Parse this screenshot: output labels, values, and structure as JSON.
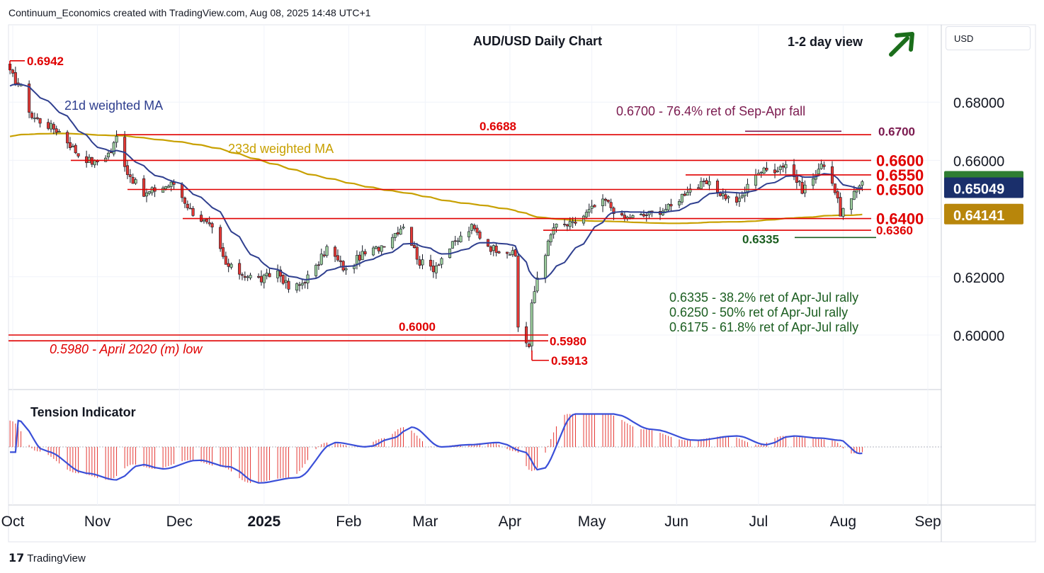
{
  "header": {
    "attribution": "Continuum_Economics created with TradingView.com, Aug 08, 2025 14:48 UTC+1"
  },
  "currency_button": "USD",
  "footer": {
    "brand": "TradingView"
  },
  "colors": {
    "candle_up": "#9ccc9c",
    "candle_down": "#e53935",
    "wick": "#131722",
    "ma21": "#2f3f8f",
    "ma233": "#c8a000",
    "level_red": "#e00000",
    "level_purple": "#7b1a4f",
    "level_green": "#1b5e20",
    "price_tag_green": "#2e7d32",
    "price_tag_navy": "#1a2f6b",
    "price_tag_gold": "#b8860b",
    "tension_line": "#3a4fd8",
    "tension_hist": "#e53935",
    "arrow_green": "#1b6e1b"
  },
  "chart_data": [
    {
      "type": "candlestick",
      "title": "AUD/USD Daily Chart",
      "view_label": "1-2 day view",
      "view_direction": "up",
      "x_tick_labels": [
        "Oct",
        "Nov",
        "Dec",
        "2025",
        "Feb",
        "Mar",
        "Apr",
        "May",
        "Jun",
        "Jul",
        "Aug",
        "Sep"
      ],
      "y_tick_labels": [
        "0.68000",
        "0.66000",
        "0.62000",
        "0.60000"
      ],
      "ylim": [
        0.588,
        0.6985
      ],
      "grid": true,
      "close_series_approx": [
        [
          "2024-09-30",
          0.69
        ],
        [
          "2024-10-04",
          0.685
        ],
        [
          "2024-10-08",
          0.675
        ],
        [
          "2024-10-14",
          0.672
        ],
        [
          "2024-10-18",
          0.67
        ],
        [
          "2024-10-25",
          0.662
        ],
        [
          "2024-10-31",
          0.659
        ],
        [
          "2024-11-06",
          0.663
        ],
        [
          "2024-11-08",
          0.668
        ],
        [
          "2024-11-12",
          0.656
        ],
        [
          "2024-11-18",
          0.648
        ],
        [
          "2024-11-22",
          0.65
        ],
        [
          "2024-11-29",
          0.652
        ],
        [
          "2024-12-05",
          0.643
        ],
        [
          "2024-12-10",
          0.639
        ],
        [
          "2024-12-13",
          0.636
        ],
        [
          "2024-12-18",
          0.624
        ],
        [
          "2024-12-24",
          0.621
        ],
        [
          "2024-12-31",
          0.619
        ],
        [
          "2025-01-06",
          0.622
        ],
        [
          "2025-01-10",
          0.616
        ],
        [
          "2025-01-14",
          0.617
        ],
        [
          "2025-01-20",
          0.623
        ],
        [
          "2025-01-24",
          0.63
        ],
        [
          "2025-01-31",
          0.622
        ],
        [
          "2025-02-05",
          0.627
        ],
        [
          "2025-02-12",
          0.63
        ],
        [
          "2025-02-19",
          0.636
        ],
        [
          "2025-02-21",
          0.638
        ],
        [
          "2025-02-27",
          0.625
        ],
        [
          "2025-03-04",
          0.623
        ],
        [
          "2025-03-10",
          0.63
        ],
        [
          "2025-03-18",
          0.637
        ],
        [
          "2025-03-25",
          0.63
        ],
        [
          "2025-03-31",
          0.629
        ],
        [
          "2025-04-03",
          0.627
        ],
        [
          "2025-04-04",
          0.603
        ],
        [
          "2025-04-08",
          0.596
        ],
        [
          "2025-04-09",
          0.61
        ],
        [
          "2025-04-11",
          0.62
        ],
        [
          "2025-04-17",
          0.637
        ],
        [
          "2025-04-24",
          0.638
        ],
        [
          "2025-05-02",
          0.644
        ],
        [
          "2025-05-06",
          0.646
        ],
        [
          "2025-05-12",
          0.64
        ],
        [
          "2025-05-20",
          0.641
        ],
        [
          "2025-05-30",
          0.644
        ],
        [
          "2025-06-05",
          0.65
        ],
        [
          "2025-06-12",
          0.652
        ],
        [
          "2025-06-20",
          0.647
        ],
        [
          "2025-06-24",
          0.646
        ],
        [
          "2025-06-30",
          0.656
        ],
        [
          "2025-07-07",
          0.657
        ],
        [
          "2025-07-11",
          0.659
        ],
        [
          "2025-07-17",
          0.65
        ],
        [
          "2025-07-23",
          0.656
        ],
        [
          "2025-07-24",
          0.66
        ],
        [
          "2025-07-28",
          0.653
        ],
        [
          "2025-07-31",
          0.642
        ],
        [
          "2025-08-04",
          0.646
        ],
        [
          "2025-08-07",
          0.652
        ],
        [
          "2025-08-08",
          0.6527
        ]
      ],
      "moving_averages": [
        {
          "name": "21d weighted MA",
          "last_value": 0.65049
        },
        {
          "name": "233d weighted MA",
          "last_value": 0.64141
        }
      ],
      "price_tags": [
        {
          "value": "0.65268",
          "kind": "last_price"
        },
        {
          "value": "0.65049",
          "kind": "ma21"
        },
        {
          "value": "0.64141",
          "kind": "ma233"
        }
      ],
      "levels": [
        {
          "label": "0.6942",
          "value": 0.6942,
          "color": "red"
        },
        {
          "label": "0.6700",
          "value": 0.67,
          "color": "purple"
        },
        {
          "label": "0.6688",
          "value": 0.6688,
          "color": "red"
        },
        {
          "label": "0.6600",
          "value": 0.66,
          "color": "red"
        },
        {
          "label": "0.6550",
          "value": 0.655,
          "color": "red"
        },
        {
          "label": "0.6500",
          "value": 0.65,
          "color": "red"
        },
        {
          "label": "0.6400",
          "value": 0.64,
          "color": "red"
        },
        {
          "label": "0.6360",
          "value": 0.636,
          "color": "red"
        },
        {
          "label": "0.6335",
          "value": 0.6335,
          "color": "green"
        },
        {
          "label": "0.6000",
          "value": 0.6,
          "color": "red"
        },
        {
          "label": "0.5980",
          "value": 0.598,
          "color": "red"
        },
        {
          "label": "0.5913",
          "value": 0.5913,
          "color": "red"
        }
      ],
      "annotations": [
        {
          "text": "0.6700 - 76.4% ret of Sep-Apr fall",
          "color": "purple"
        },
        {
          "text": "0.5980 - April 2020 (m) low",
          "color": "red"
        },
        {
          "text": "0.6335 - 38.2% ret of Apr-Jul rally",
          "color": "green"
        },
        {
          "text": "0.6250 - 50% ret of Apr-Jul rally",
          "color": "green"
        },
        {
          "text": "0.6175 - 61.8% ret of Apr-Jul rally",
          "color": "green"
        }
      ]
    },
    {
      "type": "line",
      "title": "Tension Indicator",
      "note": "oscillator shown as line with histogram; values unlabeled, relative scale",
      "series_approx": [
        [
          "2024-09-30",
          0.6
        ],
        [
          "2024-10-10",
          -0.1
        ],
        [
          "2024-10-25",
          -0.6
        ],
        [
          "2024-11-05",
          -0.75
        ],
        [
          "2024-11-14",
          -0.4
        ],
        [
          "2024-11-22",
          -0.5
        ],
        [
          "2024-12-05",
          -0.3
        ],
        [
          "2024-12-16",
          -0.45
        ],
        [
          "2024-12-27",
          -0.82
        ],
        [
          "2025-01-10",
          -0.7
        ],
        [
          "2025-01-24",
          0.1
        ],
        [
          "2025-02-05",
          0.0
        ],
        [
          "2025-02-14",
          0.2
        ],
        [
          "2025-02-21",
          0.45
        ],
        [
          "2025-03-04",
          0.0
        ],
        [
          "2025-03-14",
          0.05
        ],
        [
          "2025-03-25",
          0.1
        ],
        [
          "2025-04-03",
          -0.1
        ],
        [
          "2025-04-09",
          -0.55
        ],
        [
          "2025-04-22",
          0.75
        ],
        [
          "2025-05-06",
          0.75
        ],
        [
          "2025-05-20",
          0.4
        ],
        [
          "2025-06-05",
          0.15
        ],
        [
          "2025-06-20",
          0.25
        ],
        [
          "2025-07-01",
          0.05
        ],
        [
          "2025-07-10",
          0.25
        ],
        [
          "2025-07-21",
          0.2
        ],
        [
          "2025-07-28",
          0.15
        ],
        [
          "2025-08-04",
          -0.15
        ],
        [
          "2025-08-08",
          -0.12
        ]
      ]
    }
  ]
}
